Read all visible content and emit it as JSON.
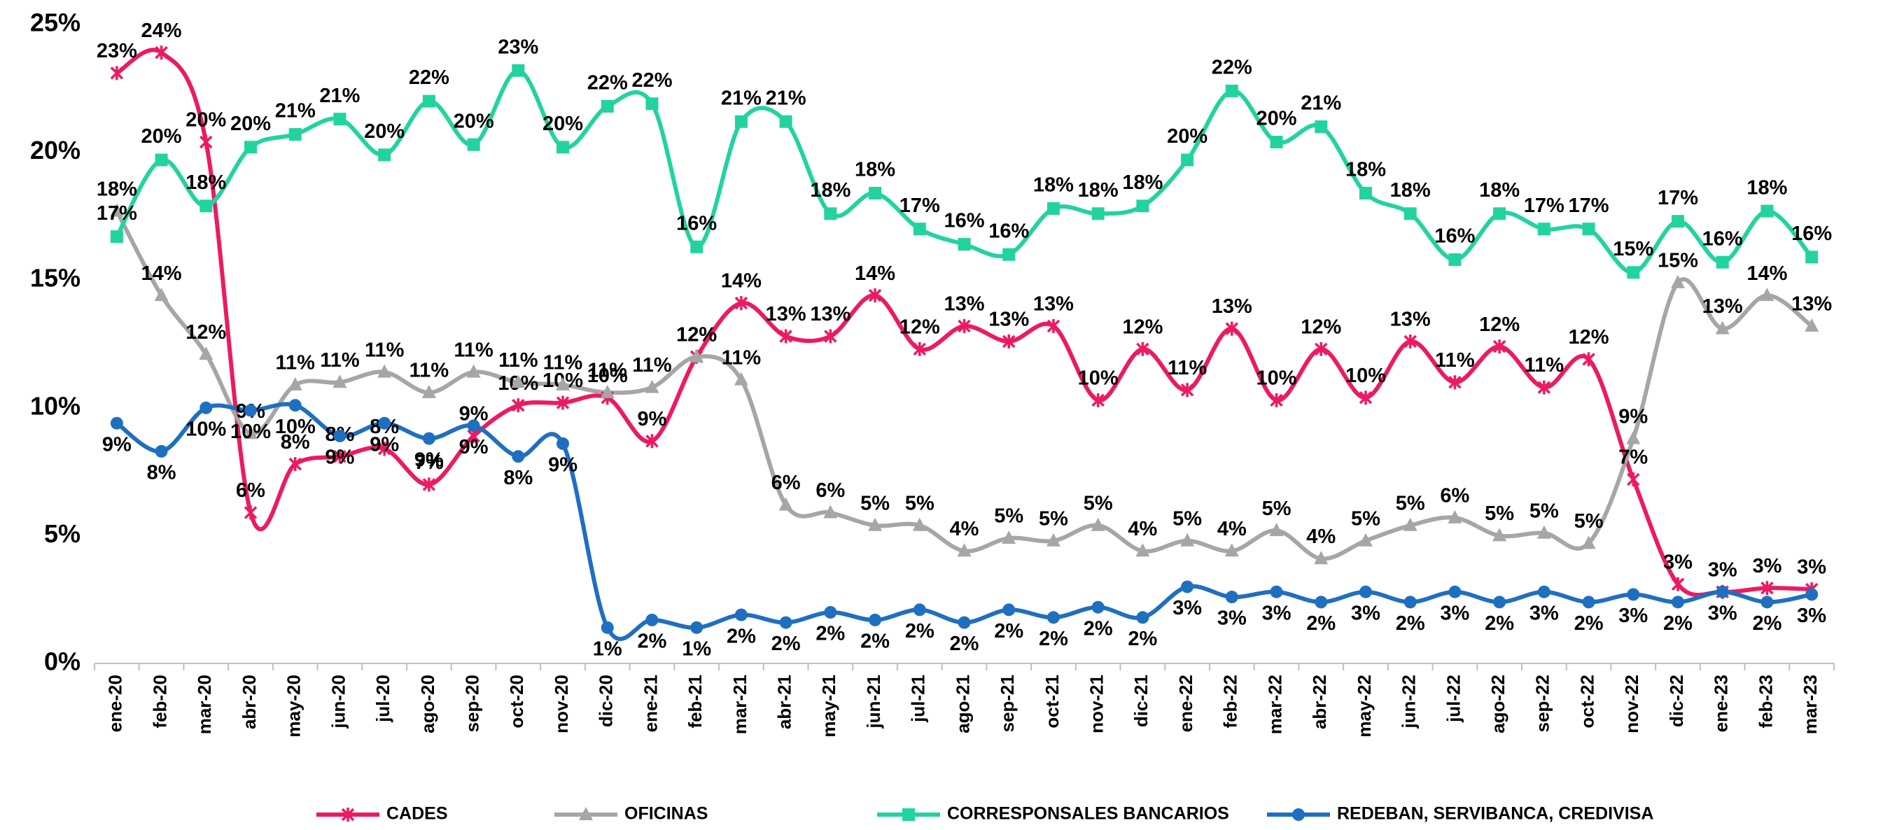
{
  "chart_data": {
    "type": "line",
    "categories": [
      "ene-20",
      "feb-20",
      "mar-20",
      "abr-20",
      "may-20",
      "jun-20",
      "jul-20",
      "ago-20",
      "sep-20",
      "oct-20",
      "nov-20",
      "dic-20",
      "ene-21",
      "feb-21",
      "mar-21",
      "abr-21",
      "may-21",
      "jun-21",
      "jul-21",
      "ago-21",
      "sep-21",
      "oct-21",
      "nov-21",
      "dic-21",
      "ene-22",
      "feb-22",
      "mar-22",
      "abr-22",
      "may-22",
      "jun-22",
      "jul-22",
      "ago-22",
      "sep-22",
      "oct-22",
      "nov-22",
      "dic-22",
      "ene-23",
      "feb-23",
      "mar-23"
    ],
    "ylim": [
      0,
      25
    ],
    "yticks": [
      {
        "value": 0,
        "label": "0%"
      },
      {
        "value": 5,
        "label": "5%"
      },
      {
        "value": 10,
        "label": "10%"
      },
      {
        "value": 15,
        "label": "15%"
      },
      {
        "value": 20,
        "label": "20%"
      },
      {
        "value": 25,
        "label": "25%"
      }
    ],
    "legend": "bottom",
    "series": [
      {
        "name": "CADES",
        "color": "#ec1a63",
        "marker": "x",
        "values": [
          23.1,
          23.9,
          20.4,
          5.9,
          7.8,
          8.1,
          8.4,
          7.0,
          8.9,
          10.1,
          10.2,
          10.4,
          8.7,
          12.0,
          14.1,
          12.8,
          12.8,
          14.4,
          12.3,
          13.2,
          12.6,
          13.2,
          10.3,
          12.3,
          10.7,
          13.1,
          10.3,
          12.3,
          10.4,
          12.6,
          11.0,
          12.4,
          10.8,
          11.9,
          7.2,
          3.1,
          2.8,
          2.95,
          2.9
        ],
        "value_labels": [
          "23%",
          "24%",
          "20%",
          "6%",
          "8%",
          "8%",
          "8%",
          "7%",
          "9%",
          "10%",
          "10%",
          "10%",
          "9%",
          "12%",
          "14%",
          "13%",
          "13%",
          "14%",
          "12%",
          "13%",
          "13%",
          "13%",
          "10%",
          "12%",
          "11%",
          "13%",
          "10%",
          "12%",
          "10%",
          "13%",
          "11%",
          "12%",
          "11%",
          "12%",
          "7%",
          "3%",
          "3%",
          "3%",
          "3%"
        ]
      },
      {
        "name": "OFICINAS",
        "color": "#a6a6a6",
        "marker": "triangle",
        "values": [
          17.7,
          14.4,
          12.1,
          9.0,
          10.9,
          11.0,
          11.4,
          10.6,
          11.4,
          11.0,
          10.9,
          10.6,
          10.8,
          12.0,
          11.1,
          6.2,
          5.9,
          5.4,
          5.4,
          4.4,
          4.9,
          4.8,
          5.4,
          4.4,
          4.8,
          4.4,
          5.2,
          4.1,
          4.8,
          5.4,
          5.7,
          5.0,
          5.1,
          4.7,
          8.8,
          14.9,
          13.1,
          14.4,
          13.2
        ],
        "value_labels": [
          "18%",
          "14%",
          "12%",
          "9%",
          "11%",
          "11%",
          "11%",
          "11%",
          "11%",
          "11%",
          "11%",
          "11%",
          "11%",
          "12%",
          "11%",
          "6%",
          "6%",
          "5%",
          "5%",
          "4%",
          "5%",
          "5%",
          "5%",
          "4%",
          "5%",
          "4%",
          "5%",
          "4%",
          "5%",
          "5%",
          "6%",
          "5%",
          "5%",
          "5%",
          "9%",
          "15%",
          "13%",
          "14%",
          "13%"
        ]
      },
      {
        "name": "CORRESPONSALES BANCARIOS",
        "color": "#22d3a0",
        "marker": "square",
        "values": [
          16.7,
          19.7,
          17.9,
          20.2,
          20.7,
          21.3,
          19.9,
          22.0,
          20.3,
          23.2,
          20.2,
          21.8,
          21.9,
          16.3,
          21.2,
          21.2,
          17.6,
          18.4,
          17.0,
          16.4,
          16.0,
          17.8,
          17.6,
          17.9,
          19.7,
          22.4,
          20.4,
          21.0,
          18.4,
          17.6,
          15.8,
          17.6,
          17.0,
          17.0,
          15.3,
          17.3,
          15.7,
          17.7,
          15.9
        ],
        "value_labels": [
          "17%",
          "20%",
          "18%",
          "20%",
          "21%",
          "21%",
          "20%",
          "22%",
          "20%",
          "23%",
          "20%",
          "22%",
          "22%",
          "16%",
          "21%",
          "21%",
          "18%",
          "18%",
          "17%",
          "16%",
          "16%",
          "18%",
          "18%",
          "18%",
          "20%",
          "22%",
          "20%",
          "21%",
          "18%",
          "18%",
          "16%",
          "18%",
          "17%",
          "17%",
          "15%",
          "17%",
          "16%",
          "18%",
          "16%"
        ]
      },
      {
        "name": "REDEBAN, SERVIBANCA, CREDIVISA",
        "color": "#1f6fc0",
        "marker": "circle",
        "values": [
          9.4,
          8.3,
          10.0,
          9.9,
          10.1,
          8.9,
          9.4,
          8.8,
          9.3,
          8.1,
          8.6,
          1.4,
          1.7,
          1.4,
          1.9,
          1.6,
          2.0,
          1.7,
          2.1,
          1.6,
          2.1,
          1.8,
          2.2,
          1.8,
          3.0,
          2.6,
          2.8,
          2.4,
          2.8,
          2.4,
          2.8,
          2.4,
          2.8,
          2.4,
          2.7,
          2.4,
          2.8,
          2.4,
          2.7
        ],
        "value_labels": [
          "9%",
          "8%",
          "10%",
          "10%",
          "10%",
          "9%",
          "9%",
          "9%",
          "9%",
          "8%",
          "9%",
          "1%",
          "2%",
          "1%",
          "2%",
          "2%",
          "2%",
          "2%",
          "2%",
          "2%",
          "2%",
          "2%",
          "2%",
          "2%",
          "3%",
          "3%",
          "3%",
          "2%",
          "3%",
          "2%",
          "3%",
          "2%",
          "3%",
          "2%",
          "3%",
          "2%",
          "3%",
          "2%",
          "3%"
        ]
      }
    ]
  }
}
